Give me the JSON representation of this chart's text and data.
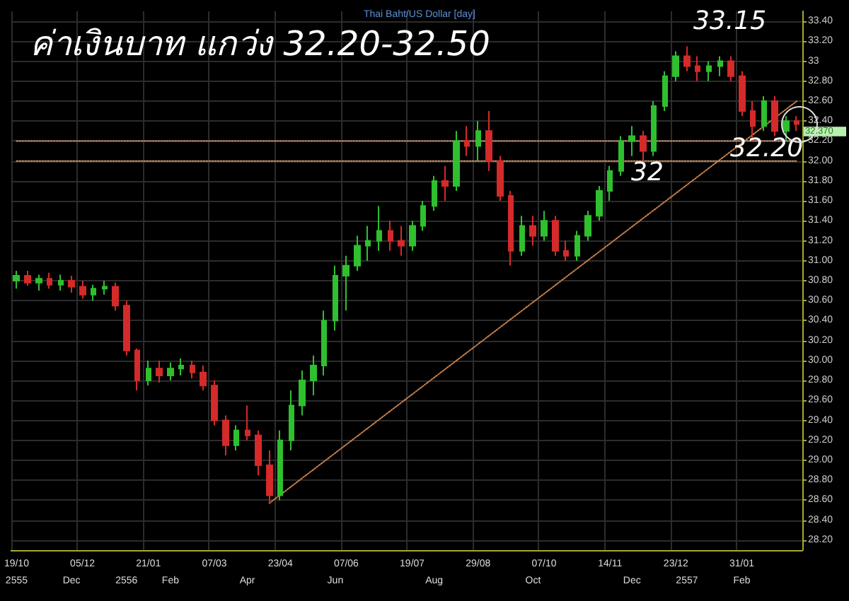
{
  "chart_data": {
    "type": "candlestick",
    "title": "ค่าเงินบาท แกว่ง 32.20-32.50",
    "subtitle": "Thai Baht/US Dollar [day]",
    "categories": [
      "19/10\n2555",
      null,
      null,
      null,
      null,
      "\nDec",
      "05/12",
      null,
      null,
      null,
      "\n2556",
      null,
      "21/01",
      null,
      "\nFeb",
      null,
      null,
      null,
      "07/03",
      null,
      null,
      "\nApr",
      null,
      null,
      "23/04",
      null,
      null,
      null,
      null,
      "\nJun",
      "07/06",
      null,
      null,
      null,
      null,
      null,
      "19/07",
      null,
      "\nAug",
      null,
      null,
      null,
      "29/08",
      null,
      null,
      null,
      null,
      "\nOct",
      "07/10",
      null,
      null,
      null,
      null,
      null,
      "14/11",
      null,
      "\nDec",
      null,
      null,
      null,
      "23/12",
      "\n2557",
      null,
      null,
      null,
      null,
      "31/01\nFeb",
      null,
      null,
      null,
      null,
      null
    ],
    "ohlc": [
      [
        30.8,
        30.9,
        30.72,
        30.85
      ],
      [
        30.85,
        30.9,
        30.75,
        30.78
      ],
      [
        30.78,
        30.86,
        30.7,
        30.82
      ],
      [
        30.82,
        30.88,
        30.72,
        30.76
      ],
      [
        30.76,
        30.86,
        30.7,
        30.8
      ],
      [
        30.8,
        30.85,
        30.68,
        30.74
      ],
      [
        30.74,
        30.8,
        30.62,
        30.66
      ],
      [
        30.66,
        30.76,
        30.6,
        30.72
      ],
      [
        30.72,
        30.8,
        30.66,
        30.74
      ],
      [
        30.74,
        30.78,
        30.5,
        30.55
      ],
      [
        30.55,
        30.6,
        30.05,
        30.1
      ],
      [
        30.1,
        30.12,
        29.7,
        29.8
      ],
      [
        29.8,
        30.0,
        29.75,
        29.92
      ],
      [
        29.92,
        30.0,
        29.78,
        29.85
      ],
      [
        29.85,
        29.98,
        29.8,
        29.92
      ],
      [
        29.92,
        30.02,
        29.85,
        29.95
      ],
      [
        29.95,
        30.0,
        29.82,
        29.88
      ],
      [
        29.88,
        29.95,
        29.7,
        29.75
      ],
      [
        29.75,
        29.8,
        29.35,
        29.4
      ],
      [
        29.4,
        29.45,
        29.05,
        29.15
      ],
      [
        29.15,
        29.35,
        29.1,
        29.3
      ],
      [
        29.3,
        29.55,
        29.2,
        29.25
      ],
      [
        29.25,
        29.3,
        28.85,
        28.95
      ],
      [
        28.95,
        29.1,
        28.57,
        28.65
      ],
      [
        28.65,
        29.3,
        28.6,
        29.2
      ],
      [
        29.2,
        29.7,
        29.1,
        29.55
      ],
      [
        29.55,
        29.9,
        29.45,
        29.8
      ],
      [
        29.8,
        30.05,
        29.65,
        29.95
      ],
      [
        29.95,
        30.5,
        29.85,
        30.4
      ],
      [
        30.4,
        30.95,
        30.3,
        30.85
      ],
      [
        30.85,
        31.05,
        30.5,
        30.95
      ],
      [
        30.95,
        31.25,
        30.9,
        31.15
      ],
      [
        31.15,
        31.35,
        31.0,
        31.2
      ],
      [
        31.2,
        31.55,
        31.1,
        31.3
      ],
      [
        31.3,
        31.4,
        31.1,
        31.2
      ],
      [
        31.2,
        31.35,
        31.05,
        31.15
      ],
      [
        31.15,
        31.4,
        31.1,
        31.35
      ],
      [
        31.35,
        31.6,
        31.3,
        31.55
      ],
      [
        31.55,
        31.85,
        31.5,
        31.8
      ],
      [
        31.8,
        31.95,
        31.6,
        31.75
      ],
      [
        31.75,
        32.3,
        31.7,
        32.2
      ],
      [
        32.2,
        32.35,
        32.05,
        32.15
      ],
      [
        32.15,
        32.4,
        32.0,
        32.3
      ],
      [
        32.3,
        32.5,
        31.9,
        32.0
      ],
      [
        32.0,
        32.05,
        31.6,
        31.65
      ],
      [
        31.65,
        31.7,
        30.95,
        31.1
      ],
      [
        31.1,
        31.45,
        31.05,
        31.35
      ],
      [
        31.35,
        31.45,
        31.15,
        31.25
      ],
      [
        31.25,
        31.5,
        31.2,
        31.4
      ],
      [
        31.4,
        31.45,
        31.05,
        31.1
      ],
      [
        31.1,
        31.2,
        31.0,
        31.05
      ],
      [
        31.05,
        31.3,
        31.0,
        31.25
      ],
      [
        31.25,
        31.5,
        31.2,
        31.45
      ],
      [
        31.45,
        31.75,
        31.4,
        31.7
      ],
      [
        31.7,
        31.95,
        31.6,
        31.9
      ],
      [
        31.9,
        32.25,
        31.85,
        32.2
      ],
      [
        32.2,
        32.35,
        32.05,
        32.25
      ],
      [
        32.25,
        32.3,
        32.0,
        32.1
      ],
      [
        32.1,
        32.6,
        32.05,
        32.55
      ],
      [
        32.55,
        32.9,
        32.5,
        32.85
      ],
      [
        32.85,
        33.1,
        32.8,
        33.05
      ],
      [
        33.05,
        33.15,
        32.9,
        32.95
      ],
      [
        32.95,
        33.05,
        32.8,
        32.9
      ],
      [
        32.9,
        33.0,
        32.8,
        32.95
      ],
      [
        32.95,
        33.05,
        32.85,
        33.0
      ],
      [
        33.0,
        33.05,
        32.8,
        32.85
      ],
      [
        32.85,
        32.9,
        32.45,
        32.5
      ],
      [
        32.5,
        32.6,
        32.2,
        32.35
      ],
      [
        32.35,
        32.65,
        32.3,
        32.6
      ],
      [
        32.6,
        32.65,
        32.25,
        32.3
      ],
      [
        32.3,
        32.45,
        32.2,
        32.4
      ],
      [
        32.4,
        32.45,
        32.3,
        32.37
      ]
    ],
    "colors": [
      "#2fbf2f",
      "#d42a2a",
      "#2fbf2f",
      "#d42a2a",
      "#2fbf2f",
      "#d42a2a",
      "#d42a2a",
      "#2fbf2f",
      "#2fbf2f",
      "#d42a2a",
      "#d42a2a",
      "#d42a2a",
      "#2fbf2f",
      "#d42a2a",
      "#2fbf2f",
      "#2fbf2f",
      "#d42a2a",
      "#d42a2a",
      "#d42a2a",
      "#d42a2a",
      "#2fbf2f",
      "#d42a2a",
      "#d42a2a",
      "#d42a2a",
      "#2fbf2f",
      "#2fbf2f",
      "#2fbf2f",
      "#2fbf2f",
      "#2fbf2f",
      "#2fbf2f",
      "#2fbf2f",
      "#2fbf2f",
      "#2fbf2f",
      "#2fbf2f",
      "#d42a2a",
      "#d42a2a",
      "#2fbf2f",
      "#2fbf2f",
      "#2fbf2f",
      "#d42a2a",
      "#2fbf2f",
      "#d42a2a",
      "#2fbf2f",
      "#d42a2a",
      "#d42a2a",
      "#d42a2a",
      "#2fbf2f",
      "#d42a2a",
      "#2fbf2f",
      "#d42a2a",
      "#d42a2a",
      "#2fbf2f",
      "#2fbf2f",
      "#2fbf2f",
      "#2fbf2f",
      "#2fbf2f",
      "#2fbf2f",
      "#d42a2a",
      "#2fbf2f",
      "#2fbf2f",
      "#2fbf2f",
      "#d42a2a",
      "#d42a2a",
      "#2fbf2f",
      "#2fbf2f",
      "#d42a2a",
      "#d42a2a",
      "#d42a2a",
      "#2fbf2f",
      "#d42a2a",
      "#2fbf2f",
      "#d42a2a"
    ],
    "series": [
      {
        "type": "line",
        "color": "#c8804a",
        "line_style": "dotted",
        "marker": "none",
        "values": [
          null,
          null,
          null,
          null,
          null,
          null,
          null,
          null,
          null,
          null,
          null,
          null,
          null,
          null,
          null,
          null,
          null,
          null,
          null,
          null,
          null,
          null,
          null,
          28.57,
          null,
          null,
          null,
          null,
          null,
          null,
          null,
          null,
          null,
          null,
          null,
          null,
          null,
          null,
          null,
          null,
          null,
          null,
          null,
          null,
          null,
          null,
          null,
          null,
          null,
          null,
          null,
          null,
          null,
          null,
          null,
          null,
          null,
          null,
          null,
          null,
          null,
          null,
          null,
          null,
          null,
          null,
          null,
          null,
          null,
          null,
          null,
          32.6
        ]
      },
      {
        "type": "line",
        "color": "#c8906a",
        "line_style": "dotted",
        "marker": "none",
        "values": [
          32.2,
          32.2,
          32.2,
          32.2,
          32.2,
          32.2,
          32.2,
          32.2,
          32.2,
          32.2,
          32.2,
          32.2,
          32.2,
          32.2,
          32.2,
          32.2,
          32.2,
          32.2,
          32.2,
          32.2,
          32.2,
          32.2,
          32.2,
          32.2,
          32.2,
          32.2,
          32.2,
          32.2,
          32.2,
          32.2,
          32.2,
          32.2,
          32.2,
          32.2,
          32.2,
          32.2,
          32.2,
          32.2,
          32.2,
          32.2,
          32.2,
          32.2,
          32.2,
          32.2,
          32.2,
          32.2,
          32.2,
          32.2,
          32.2,
          32.2,
          32.2,
          32.2,
          32.2,
          32.2,
          32.2,
          32.2,
          32.2,
          32.2,
          32.2,
          32.2,
          32.2,
          32.2,
          32.2,
          32.2,
          32.2,
          32.2,
          32.2,
          32.2,
          32.2,
          32.2,
          32.2,
          32.2
        ]
      },
      {
        "type": "line",
        "color": "#c8906a",
        "line_style": "dotted",
        "marker": "none",
        "values": [
          32.0,
          32.0,
          32.0,
          32.0,
          32.0,
          32.0,
          32.0,
          32.0,
          32.0,
          32.0,
          32.0,
          32.0,
          32.0,
          32.0,
          32.0,
          32.0,
          32.0,
          32.0,
          32.0,
          32.0,
          32.0,
          32.0,
          32.0,
          32.0,
          32.0,
          32.0,
          32.0,
          32.0,
          32.0,
          32.0,
          32.0,
          32.0,
          32.0,
          32.0,
          32.0,
          32.0,
          32.0,
          32.0,
          32.0,
          32.0,
          32.0,
          32.0,
          32.0,
          32.0,
          32.0,
          32.0,
          32.0,
          32.0,
          32.0,
          32.0,
          32.0,
          32.0,
          32.0,
          32.0,
          32.0,
          32.0,
          32.0,
          32.0,
          32.0,
          32.0,
          32.0,
          32.0,
          32.0,
          32.0,
          32.0,
          32.0,
          32.0,
          32.0,
          32.0,
          32.0,
          32.0,
          32.0
        ]
      }
    ],
    "annotations": [
      "33.15",
      "32",
      "32.20",
      "32.370"
    ],
    "ylim": [
      28.1,
      33.5
    ],
    "yticks": [
      {
        "value": 28.2,
        "label": "28.20"
      },
      {
        "value": 28.4,
        "label": "28.40"
      },
      {
        "value": 28.6,
        "label": "28.60"
      },
      {
        "value": 28.8,
        "label": "28.80"
      },
      {
        "value": 29,
        "label": "29.00"
      },
      {
        "value": 29.2,
        "label": "29.20"
      },
      {
        "value": 29.4,
        "label": "29.40"
      },
      {
        "value": 29.6,
        "label": "29.60"
      },
      {
        "value": 29.8,
        "label": "29.80"
      },
      {
        "value": 30,
        "label": "30.00"
      },
      {
        "value": 30.2,
        "label": "30.20"
      },
      {
        "value": 30.4,
        "label": "30.40"
      },
      {
        "value": 30.6,
        "label": "30.60"
      },
      {
        "value": 30.8,
        "label": "30.80"
      },
      {
        "value": 31,
        "label": "31.00"
      },
      {
        "value": 31.2,
        "label": "31.20"
      },
      {
        "value": 31.4,
        "label": "31.40"
      },
      {
        "value": 31.6,
        "label": "31.60"
      },
      {
        "value": 31.8,
        "label": "31.80"
      },
      {
        "value": 32,
        "label": "32.00"
      },
      {
        "value": 32.2,
        "label": "32.20"
      },
      {
        "value": 32.4,
        "label": "32.40"
      },
      {
        "value": 32.6,
        "label": "32.60"
      },
      {
        "value": 32.8,
        "label": "32.80"
      },
      {
        "value": 33,
        "label": "33"
      },
      {
        "value": 33.2,
        "label": "33.20"
      },
      {
        "value": 33.4,
        "label": "33.40"
      }
    ],
    "grid": true
  }
}
